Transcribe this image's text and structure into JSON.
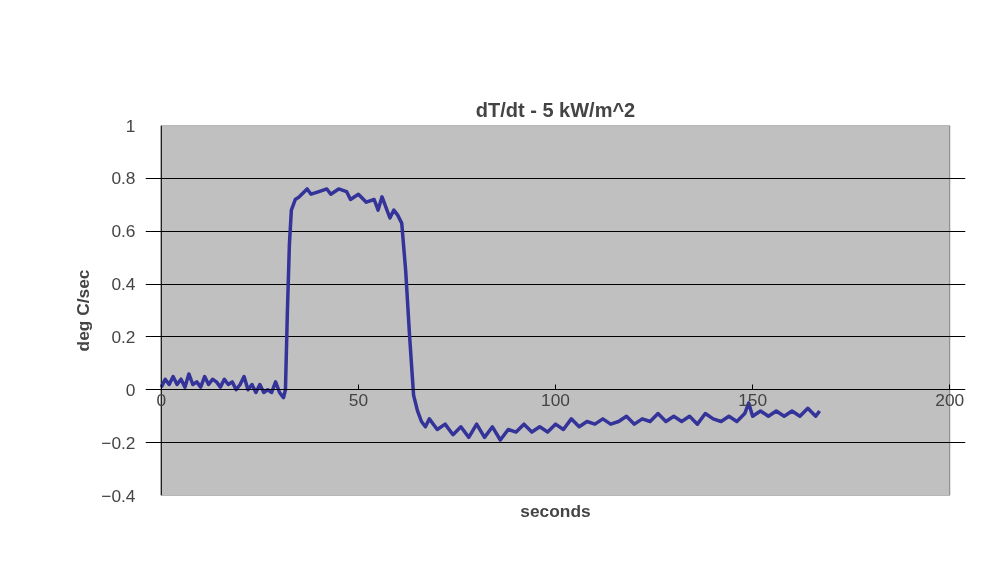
{
  "chart_data": {
    "type": "line",
    "title": "dT/dt - 5 kW/m^2",
    "xlabel": "seconds",
    "ylabel": "deg C/sec",
    "xlim": [
      0,
      200
    ],
    "ylim": [
      -0.4,
      1
    ],
    "xticks": [
      0,
      50,
      100,
      150,
      200
    ],
    "yticks": [
      -0.4,
      -0.2,
      0,
      0.2,
      0.4,
      0.6,
      0.8,
      1
    ],
    "grid": "y",
    "marker": "none",
    "line_style": "solid",
    "series": [
      {
        "color": "#333399",
        "x": [
          0,
          1,
          2,
          3,
          4,
          5,
          6,
          7,
          8,
          9,
          10,
          11,
          12,
          13,
          14,
          15,
          16,
          17,
          18,
          19,
          20,
          21,
          22,
          23,
          24,
          25,
          26,
          27,
          28,
          29,
          30,
          31,
          31.5,
          32,
          32.5,
          33,
          34,
          35,
          37,
          38,
          40,
          42,
          43,
          45,
          47,
          48,
          50,
          52,
          54,
          55,
          56,
          58,
          59,
          60,
          61,
          62,
          63,
          64,
          65,
          66,
          67,
          68,
          70,
          72,
          74,
          76,
          78,
          80,
          82,
          84,
          86,
          88,
          90,
          92,
          94,
          96,
          98,
          100,
          102,
          104,
          106,
          108,
          110,
          112,
          114,
          116,
          118,
          120,
          122,
          124,
          126,
          128,
          130,
          132,
          134,
          136,
          138,
          140,
          142,
          144,
          146,
          148,
          149,
          150,
          152,
          154,
          156,
          158,
          160,
          162,
          164,
          166,
          167
        ],
        "values": [
          0.01,
          0.04,
          0.02,
          0.05,
          0.02,
          0.04,
          0.01,
          0.06,
          0.02,
          0.03,
          0.01,
          0.05,
          0.02,
          0.04,
          0.03,
          0.01,
          0.04,
          0.02,
          0.03,
          0.0,
          0.02,
          0.05,
          0.0,
          0.02,
          -0.01,
          0.02,
          -0.01,
          0.0,
          -0.01,
          0.03,
          -0.01,
          -0.03,
          0.0,
          0.3,
          0.55,
          0.68,
          0.72,
          0.73,
          0.76,
          0.74,
          0.75,
          0.76,
          0.74,
          0.76,
          0.75,
          0.72,
          0.74,
          0.71,
          0.72,
          0.68,
          0.73,
          0.65,
          0.68,
          0.66,
          0.63,
          0.45,
          0.2,
          -0.02,
          -0.08,
          -0.12,
          -0.14,
          -0.11,
          -0.15,
          -0.13,
          -0.17,
          -0.14,
          -0.18,
          -0.13,
          -0.18,
          -0.14,
          -0.19,
          -0.15,
          -0.16,
          -0.13,
          -0.16,
          -0.14,
          -0.16,
          -0.13,
          -0.15,
          -0.11,
          -0.14,
          -0.12,
          -0.13,
          -0.11,
          -0.13,
          -0.12,
          -0.1,
          -0.13,
          -0.11,
          -0.12,
          -0.09,
          -0.12,
          -0.1,
          -0.12,
          -0.1,
          -0.13,
          -0.09,
          -0.11,
          -0.12,
          -0.1,
          -0.12,
          -0.09,
          -0.05,
          -0.1,
          -0.08,
          -0.1,
          -0.08,
          -0.1,
          -0.08,
          -0.1,
          -0.07,
          -0.1,
          -0.08
        ]
      }
    ]
  }
}
